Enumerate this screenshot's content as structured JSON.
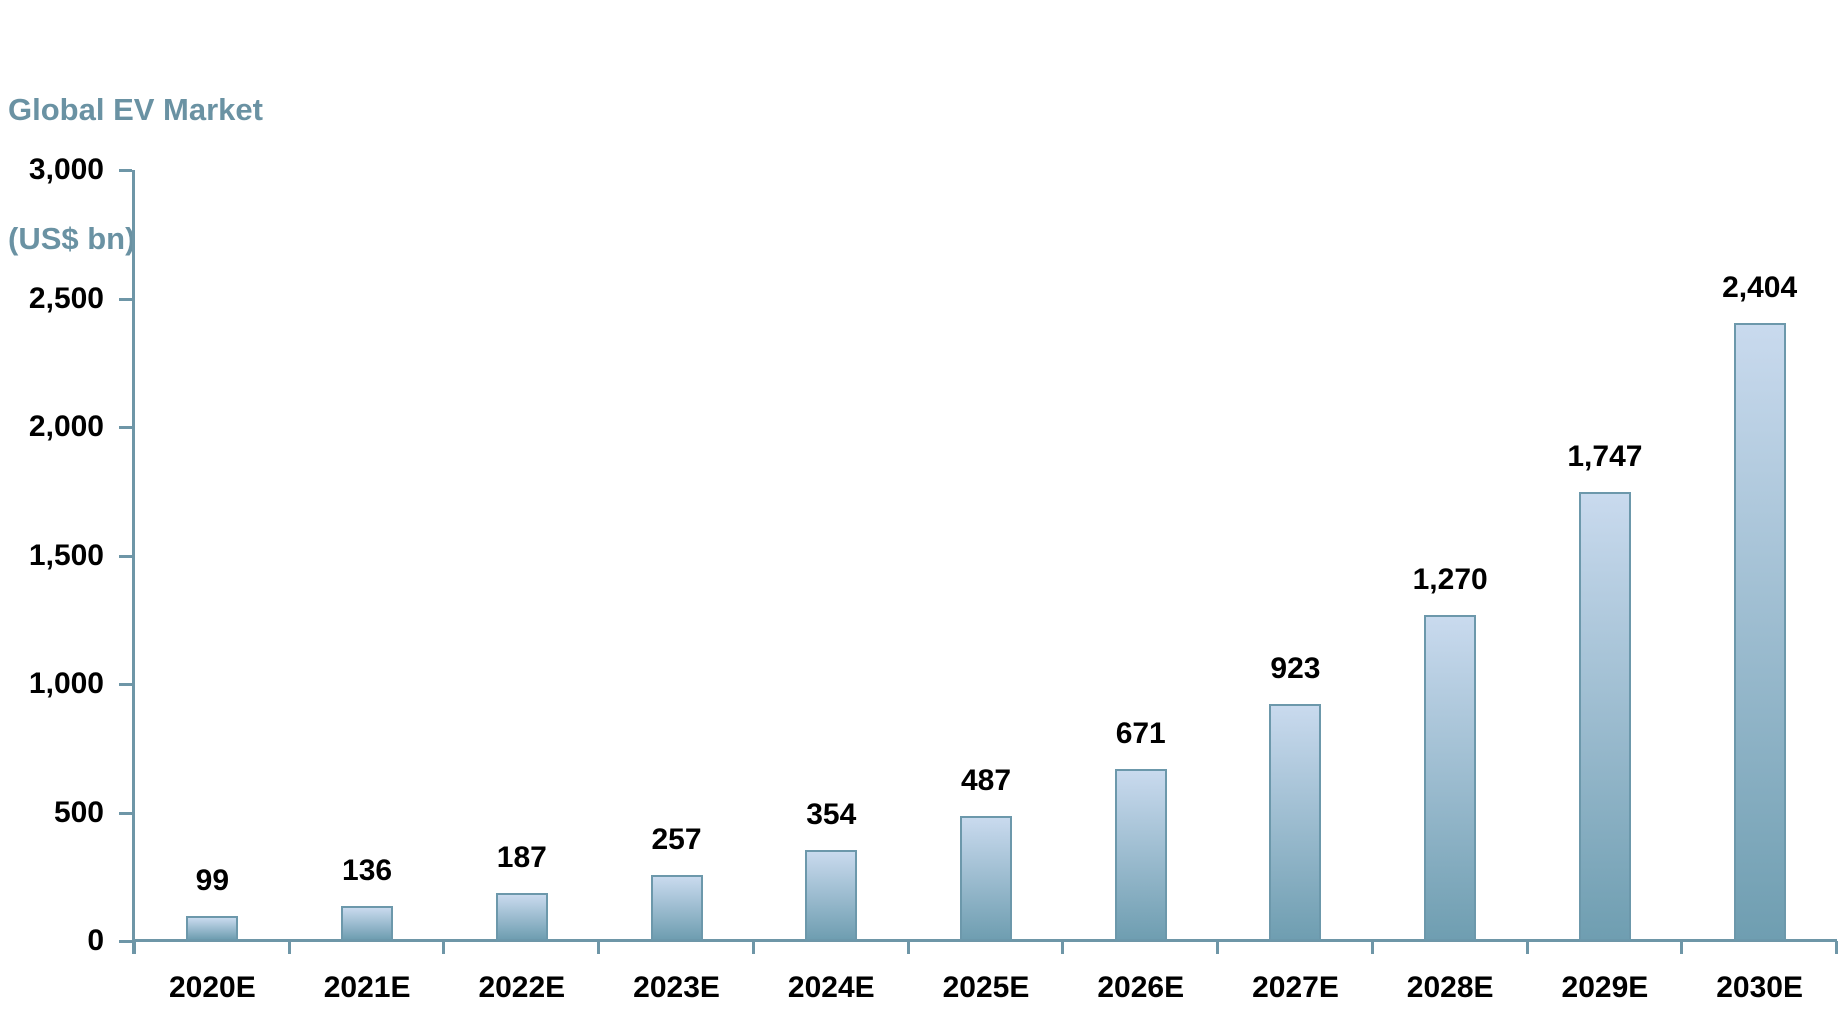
{
  "title": {
    "line1": "Global EV Market",
    "line2": "(US$ bn)"
  },
  "chart_data": {
    "type": "bar",
    "title": "Global EV Market (US$ bn)",
    "categories": [
      "2020E",
      "2021E",
      "2022E",
      "2023E",
      "2024E",
      "2025E",
      "2026E",
      "2027E",
      "2028E",
      "2029E",
      "2030E"
    ],
    "values": [
      99,
      136,
      187,
      257,
      354,
      487,
      671,
      923,
      1270,
      1747,
      2404
    ],
    "value_labels": [
      "99",
      "136",
      "187",
      "257",
      "354",
      "487",
      "671",
      "923",
      "1,270",
      "1,747",
      "2,404"
    ],
    "xlabel": "",
    "ylabel": "",
    "ylim": [
      0,
      3000
    ],
    "ytick_interval": 500,
    "ytick_labels": [
      "0",
      "500",
      "1,000",
      "1,500",
      "2,000",
      "2,500",
      "3,000"
    ],
    "grid": false,
    "legend": false,
    "colors": {
      "title_text": "#6A92A3",
      "axis": "#6E96A7",
      "bar_border": "#6C98AB",
      "bar_gradient_top": "#C9DAEE",
      "bar_gradient_bottom": "#6F9EB1",
      "label_text": "#000000",
      "background": "#FFFFFF"
    }
  }
}
